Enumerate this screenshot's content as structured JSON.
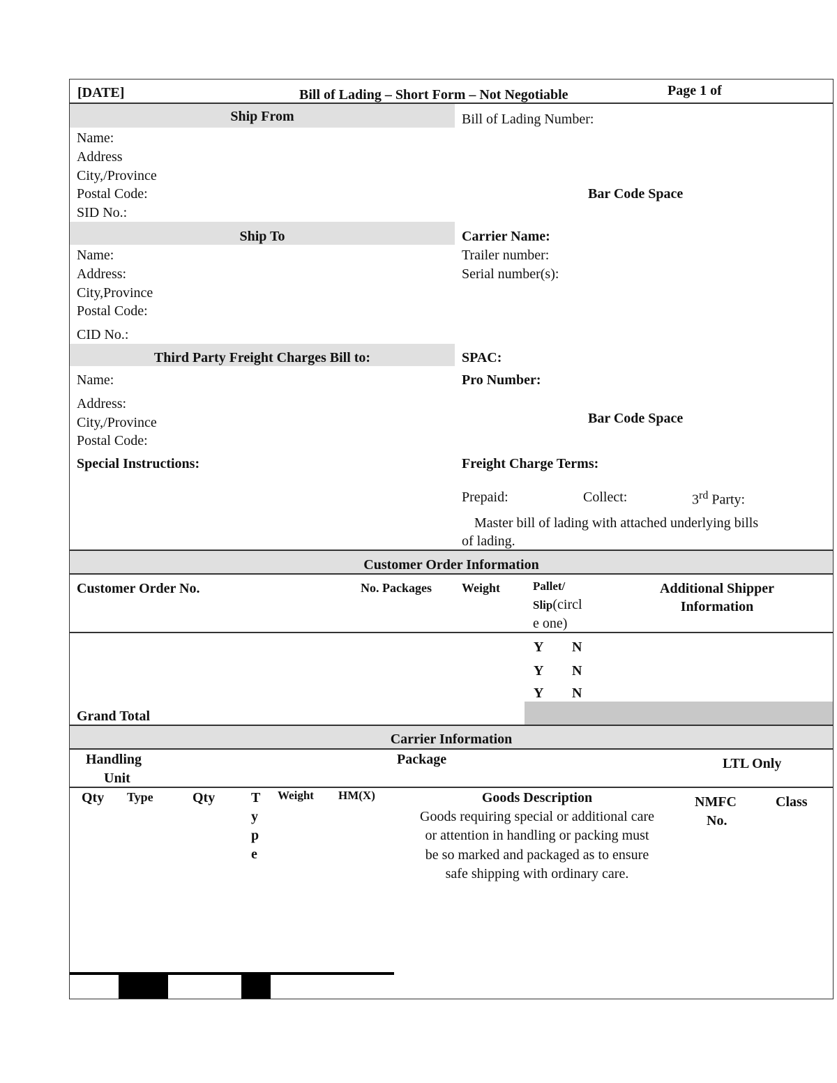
{
  "header": {
    "date": "[DATE]",
    "title": "Bill of Lading – Short Form – Not Negotiable",
    "page": "Page 1 of"
  },
  "ship_from": {
    "heading": "Ship From",
    "name": "Name:",
    "address": "Address",
    "city": "City,/Province",
    "postal": "Postal Code:",
    "sid": "SID No.:"
  },
  "ship_to": {
    "heading": "Ship To",
    "name": "Name:",
    "address": "Address:",
    "city": "City,Province",
    "postal": "Postal Code:",
    "cid": "CID No.:"
  },
  "third_party": {
    "heading": "Third Party Freight Charges Bill to:",
    "name": "Name:",
    "address": "Address:",
    "city": "City,/Province",
    "postal": "Postal Code:"
  },
  "special_instructions": "Special Instructions:",
  "right": {
    "bol_number": "Bill of Lading Number:",
    "barcode1": "Bar Code Space",
    "carrier_name": "Carrier Name:",
    "trailer": "Trailer number:",
    "serial": "Serial number(s):",
    "spac": "SPAC:",
    "pro": "Pro Number:",
    "barcode2": "Bar Code Space",
    "freight_terms": "Freight Charge Terms:",
    "prepaid": "Prepaid:",
    "collect": "Collect:",
    "third": "3",
    "third_sup": "rd",
    "third_party": "Party:",
    "master1": "Master bill of lading with attached underlying bills",
    "master2": "of lading."
  },
  "customer_order": {
    "heading": "Customer Order Information",
    "col_order": "Customer Order No.",
    "col_packages": "No. Packages",
    "col_weight": "Weight",
    "col_pallet1": "Pallet/",
    "col_pallet2": "Slip",
    "col_pallet3": "(circl",
    "col_pallet4": "e one)",
    "col_additional1": "Additional Shipper",
    "col_additional2": "Information",
    "rows": [
      {
        "y": "Y",
        "n": "N"
      },
      {
        "y": "Y",
        "n": "N"
      },
      {
        "y": "Y",
        "n": "N"
      }
    ],
    "grand_total": "Grand Total"
  },
  "carrier": {
    "heading": "Carrier Information",
    "handling1": "Handling",
    "handling2": "Unit",
    "package": "Package",
    "ltl": "LTL Only",
    "qty1": "Qty",
    "type1": "Type",
    "qty2": "Qty",
    "type2": [
      "T",
      "y",
      "p",
      "e"
    ],
    "weight": "Weight",
    "hm": "HM(X)",
    "goods": "Goods Description",
    "goods_note": [
      "Goods requiring special or additional care",
      "or attention in handling or packing must",
      "be so marked and packaged as to ensure",
      "safe shipping with ordinary care."
    ],
    "nmfc1": "NMFC",
    "nmfc2": "No.",
    "class": "Class"
  }
}
